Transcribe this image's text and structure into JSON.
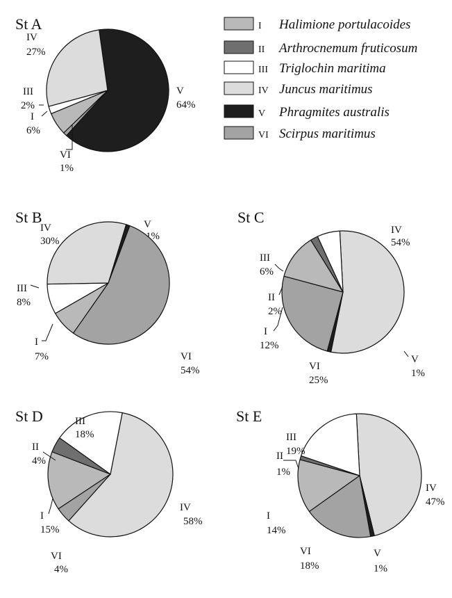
{
  "colors": {
    "I": "#b9b9b9",
    "II": "#6f6f6f",
    "III": "#ffffff",
    "IV": "#dcdcdc",
    "V": "#1e1e1e",
    "VI": "#a3a3a3",
    "stroke": "#111111"
  },
  "legend": [
    {
      "code": "I",
      "species": "Halimione portulacoides"
    },
    {
      "code": "II",
      "species": "Arthrocnemum fruticosum"
    },
    {
      "code": "III",
      "species": "Triglochin maritima"
    },
    {
      "code": "IV",
      "species": "Juncus maritimus"
    },
    {
      "code": "V",
      "species": "Phragmites australis"
    },
    {
      "code": "VI",
      "species": "Scirpus maritimus"
    }
  ],
  "chart_data": [
    {
      "type": "pie",
      "title": "St A",
      "slices": [
        {
          "code": "V",
          "value": 64,
          "label": "64%"
        },
        {
          "code": "VI",
          "value": 1,
          "label": "1%"
        },
        {
          "code": "I",
          "value": 6,
          "label": "6%"
        },
        {
          "code": "III",
          "value": 2,
          "label": "2%"
        },
        {
          "code": "IV",
          "value": 27,
          "label": "27%"
        }
      ]
    },
    {
      "type": "pie",
      "title": "St B",
      "slices": [
        {
          "code": "V",
          "value": 1,
          "label": "1%"
        },
        {
          "code": "VI",
          "value": 54,
          "label": "54%"
        },
        {
          "code": "I",
          "value": 7,
          "label": "7%"
        },
        {
          "code": "III",
          "value": 8,
          "label": "8%"
        },
        {
          "code": "IV",
          "value": 30,
          "label": "30%"
        }
      ]
    },
    {
      "type": "pie",
      "title": "St C",
      "slices": [
        {
          "code": "IV",
          "value": 54,
          "label": "54%"
        },
        {
          "code": "V",
          "value": 1,
          "label": "1%"
        },
        {
          "code": "VI",
          "value": 25,
          "label": "25%"
        },
        {
          "code": "I",
          "value": 12,
          "label": "12%"
        },
        {
          "code": "II",
          "value": 2,
          "label": "2%"
        },
        {
          "code": "III",
          "value": 6,
          "label": "6%"
        }
      ]
    },
    {
      "type": "pie",
      "title": "St D",
      "slices": [
        {
          "code": "IV",
          "value": 58,
          "label": "58%"
        },
        {
          "code": "VI",
          "value": 4,
          "label": "4%"
        },
        {
          "code": "I",
          "value": 15,
          "label": "15%"
        },
        {
          "code": "II",
          "value": 4,
          "label": "4%"
        },
        {
          "code": "III",
          "value": 18,
          "label": "18%"
        }
      ]
    },
    {
      "type": "pie",
      "title": "St E",
      "slices": [
        {
          "code": "IV",
          "value": 47,
          "label": "47%"
        },
        {
          "code": "V",
          "value": 1,
          "label": "1%"
        },
        {
          "code": "VI",
          "value": 18,
          "label": "18%"
        },
        {
          "code": "I",
          "value": 14,
          "label": "14%"
        },
        {
          "code": "II",
          "value": 1,
          "label": "1%"
        },
        {
          "code": "III",
          "value": 19,
          "label": "19%"
        }
      ]
    }
  ]
}
